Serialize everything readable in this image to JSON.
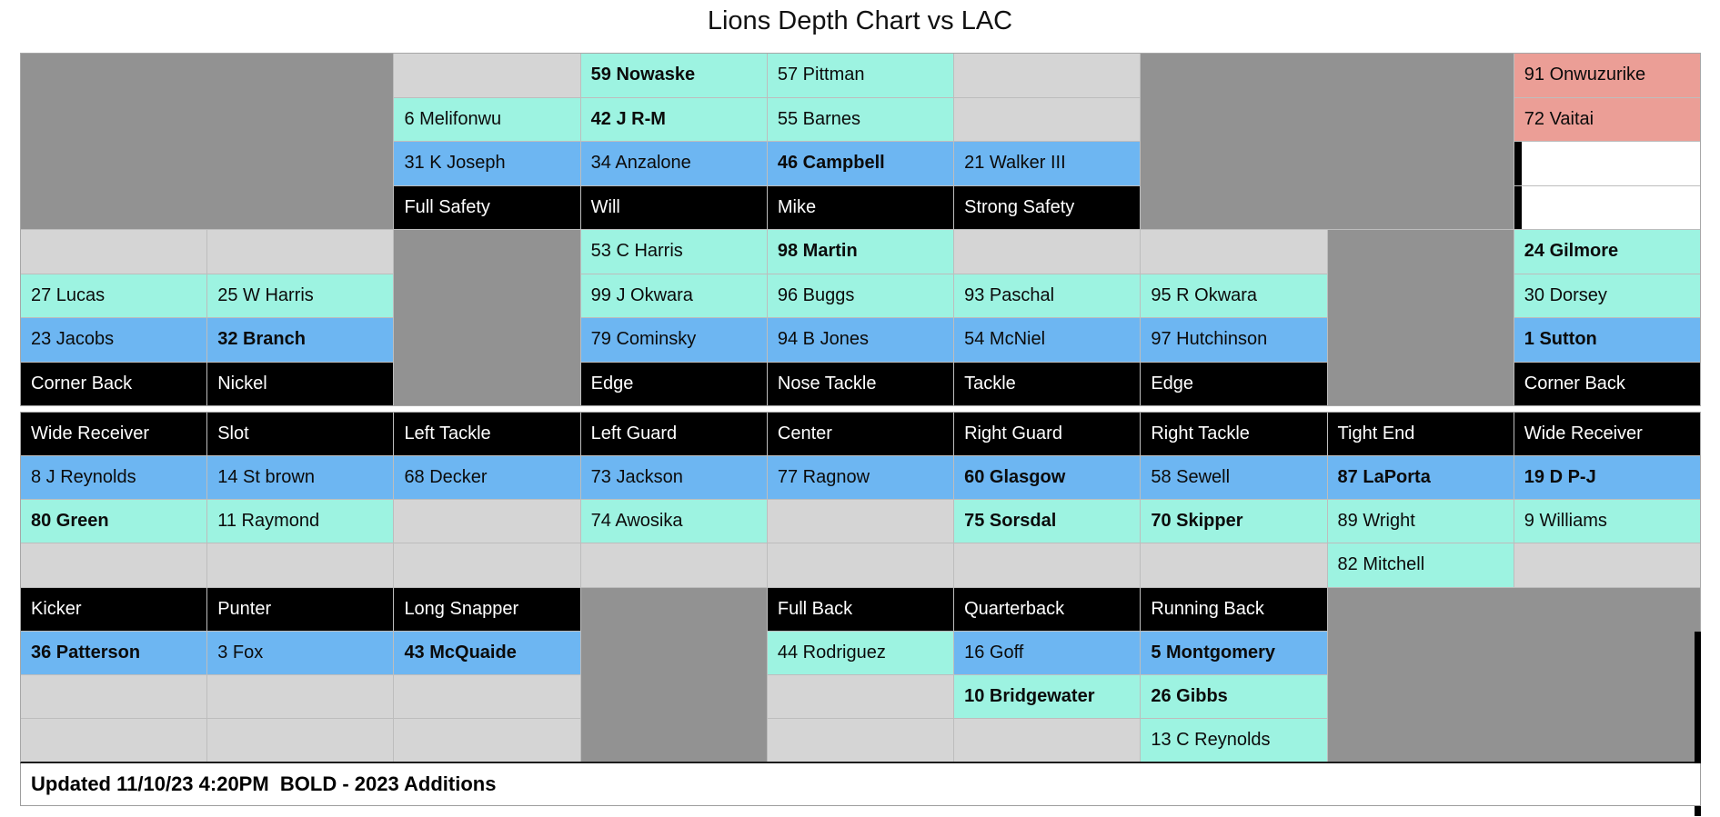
{
  "title": "Lions Depth Chart vs LAC",
  "footer": "Updated 11/10/23 4:20PM  BOLD - 2023 Additions",
  "colors": {
    "teal": "#9df3e1",
    "blue": "#6db6f2",
    "black": "#000000",
    "salmon": "#eb9e96",
    "dark": "#929292",
    "light": "#d5d5d5",
    "whitebar": "#ffffff",
    "grid_line": "#bdbdbd"
  },
  "grid": {
    "columns": 9,
    "sections": [
      {
        "name": "defense",
        "rows": 8,
        "cells": [
          {
            "r": 1,
            "c": 1,
            "rs": 4,
            "cs": 2,
            "bg": "dark"
          },
          {
            "r": 1,
            "c": 7,
            "rs": 4,
            "cs": 2,
            "bg": "dark"
          },
          {
            "r": 1,
            "c": 3,
            "bg": "light"
          },
          {
            "r": 1,
            "c": 4,
            "bg": "teal",
            "t": "59 Nowaske",
            "b": 1
          },
          {
            "r": 1,
            "c": 5,
            "bg": "teal",
            "t": "57 Pittman"
          },
          {
            "r": 1,
            "c": 6,
            "bg": "light"
          },
          {
            "r": 1,
            "c": 9,
            "bg": "salmon",
            "t": "91 Onwuzurike"
          },
          {
            "r": 2,
            "c": 3,
            "bg": "teal",
            "t": "6 Melifonwu"
          },
          {
            "r": 2,
            "c": 4,
            "bg": "teal",
            "t": "42 J R-M",
            "b": 1
          },
          {
            "r": 2,
            "c": 5,
            "bg": "teal",
            "t": "55 Barnes"
          },
          {
            "r": 2,
            "c": 6,
            "bg": "light"
          },
          {
            "r": 2,
            "c": 9,
            "bg": "salmon",
            "t": "72 Vaitai"
          },
          {
            "r": 3,
            "c": 3,
            "bg": "blue",
            "t": "31 K Joseph"
          },
          {
            "r": 3,
            "c": 4,
            "bg": "blue",
            "t": "34 Anzalone"
          },
          {
            "r": 3,
            "c": 5,
            "bg": "blue",
            "t": "46 Campbell",
            "b": 1
          },
          {
            "r": 3,
            "c": 6,
            "bg": "blue",
            "t": "21 Walker III"
          },
          {
            "r": 3,
            "c": 9,
            "bg": "whitebar"
          },
          {
            "r": 4,
            "c": 3,
            "bg": "black",
            "t": "Full Safety"
          },
          {
            "r": 4,
            "c": 4,
            "bg": "black",
            "t": "Will"
          },
          {
            "r": 4,
            "c": 5,
            "bg": "black",
            "t": "Mike"
          },
          {
            "r": 4,
            "c": 6,
            "bg": "black",
            "t": "Strong Safety"
          },
          {
            "r": 4,
            "c": 9,
            "bg": "whitebar"
          },
          {
            "r": 5,
            "c": 3,
            "rs": 4,
            "bg": "dark"
          },
          {
            "r": 5,
            "c": 8,
            "rs": 4,
            "bg": "dark"
          },
          {
            "r": 5,
            "c": 1,
            "bg": "light"
          },
          {
            "r": 5,
            "c": 2,
            "bg": "light"
          },
          {
            "r": 5,
            "c": 4,
            "bg": "teal",
            "t": "53 C Harris"
          },
          {
            "r": 5,
            "c": 5,
            "bg": "teal",
            "t": "98 Martin",
            "b": 1
          },
          {
            "r": 5,
            "c": 6,
            "bg": "light"
          },
          {
            "r": 5,
            "c": 7,
            "bg": "light"
          },
          {
            "r": 5,
            "c": 9,
            "bg": "teal",
            "t": "24 Gilmore",
            "b": 1
          },
          {
            "r": 6,
            "c": 1,
            "bg": "teal",
            "t": "27 Lucas"
          },
          {
            "r": 6,
            "c": 2,
            "bg": "teal",
            "t": "25 W Harris"
          },
          {
            "r": 6,
            "c": 4,
            "bg": "teal",
            "t": "99 J Okwara"
          },
          {
            "r": 6,
            "c": 5,
            "bg": "teal",
            "t": "96 Buggs"
          },
          {
            "r": 6,
            "c": 6,
            "bg": "teal",
            "t": "93 Paschal"
          },
          {
            "r": 6,
            "c": 7,
            "bg": "teal",
            "t": "95 R Okwara"
          },
          {
            "r": 6,
            "c": 9,
            "bg": "teal",
            "t": "30 Dorsey"
          },
          {
            "r": 7,
            "c": 1,
            "bg": "blue",
            "t": "23 Jacobs"
          },
          {
            "r": 7,
            "c": 2,
            "bg": "blue",
            "t": "32 Branch",
            "b": 1
          },
          {
            "r": 7,
            "c": 4,
            "bg": "blue",
            "t": "79 Cominsky"
          },
          {
            "r": 7,
            "c": 5,
            "bg": "blue",
            "t": "94 B Jones"
          },
          {
            "r": 7,
            "c": 6,
            "bg": "blue",
            "t": "54 McNiel"
          },
          {
            "r": 7,
            "c": 7,
            "bg": "blue",
            "t": "97 Hutchinson"
          },
          {
            "r": 7,
            "c": 9,
            "bg": "blue",
            "t": "1 Sutton",
            "b": 1
          },
          {
            "r": 8,
            "c": 1,
            "bg": "black",
            "t": "Corner Back"
          },
          {
            "r": 8,
            "c": 2,
            "bg": "black",
            "t": "Nickel"
          },
          {
            "r": 8,
            "c": 4,
            "bg": "black",
            "t": "Edge"
          },
          {
            "r": 8,
            "c": 5,
            "bg": "black",
            "t": "Nose Tackle"
          },
          {
            "r": 8,
            "c": 6,
            "bg": "black",
            "t": "Tackle"
          },
          {
            "r": 8,
            "c": 7,
            "bg": "black",
            "t": "Edge"
          },
          {
            "r": 8,
            "c": 9,
            "bg": "black",
            "t": "Corner Back"
          }
        ]
      },
      {
        "name": "offense",
        "rows": 8,
        "cells": [
          {
            "r": 1,
            "c": 1,
            "bg": "black",
            "t": "Wide Receiver"
          },
          {
            "r": 1,
            "c": 2,
            "bg": "black",
            "t": "Slot"
          },
          {
            "r": 1,
            "c": 3,
            "bg": "black",
            "t": "Left Tackle"
          },
          {
            "r": 1,
            "c": 4,
            "bg": "black",
            "t": "Left Guard"
          },
          {
            "r": 1,
            "c": 5,
            "bg": "black",
            "t": "Center"
          },
          {
            "r": 1,
            "c": 6,
            "bg": "black",
            "t": "Right Guard"
          },
          {
            "r": 1,
            "c": 7,
            "bg": "black",
            "t": "Right Tackle"
          },
          {
            "r": 1,
            "c": 8,
            "bg": "black",
            "t": "Tight End"
          },
          {
            "r": 1,
            "c": 9,
            "bg": "black",
            "t": "Wide Receiver"
          },
          {
            "r": 2,
            "c": 1,
            "bg": "blue",
            "t": "8 J Reynolds"
          },
          {
            "r": 2,
            "c": 2,
            "bg": "blue",
            "t": "14 St brown"
          },
          {
            "r": 2,
            "c": 3,
            "bg": "blue",
            "t": "68 Decker"
          },
          {
            "r": 2,
            "c": 4,
            "bg": "blue",
            "t": "73 Jackson"
          },
          {
            "r": 2,
            "c": 5,
            "bg": "blue",
            "t": "77 Ragnow"
          },
          {
            "r": 2,
            "c": 6,
            "bg": "blue",
            "t": "60 Glasgow",
            "b": 1
          },
          {
            "r": 2,
            "c": 7,
            "bg": "blue",
            "t": "58 Sewell"
          },
          {
            "r": 2,
            "c": 8,
            "bg": "blue",
            "t": "87 LaPorta",
            "b": 1
          },
          {
            "r": 2,
            "c": 9,
            "bg": "blue",
            "t": "19 D P-J",
            "b": 1
          },
          {
            "r": 3,
            "c": 1,
            "bg": "teal",
            "t": "80 Green",
            "b": 1
          },
          {
            "r": 3,
            "c": 2,
            "bg": "teal",
            "t": "11 Raymond"
          },
          {
            "r": 3,
            "c": 3,
            "bg": "light"
          },
          {
            "r": 3,
            "c": 4,
            "bg": "teal",
            "t": "74 Awosika"
          },
          {
            "r": 3,
            "c": 5,
            "bg": "light"
          },
          {
            "r": 3,
            "c": 6,
            "bg": "teal",
            "t": "75 Sorsdal",
            "b": 1
          },
          {
            "r": 3,
            "c": 7,
            "bg": "teal",
            "t": "70 Skipper",
            "b": 1
          },
          {
            "r": 3,
            "c": 8,
            "bg": "teal",
            "t": "89 Wright"
          },
          {
            "r": 3,
            "c": 9,
            "bg": "teal",
            "t": "9 Williams"
          },
          {
            "r": 4,
            "c": 1,
            "bg": "light"
          },
          {
            "r": 4,
            "c": 2,
            "bg": "light"
          },
          {
            "r": 4,
            "c": 3,
            "bg": "light"
          },
          {
            "r": 4,
            "c": 4,
            "bg": "light"
          },
          {
            "r": 4,
            "c": 5,
            "bg": "light"
          },
          {
            "r": 4,
            "c": 6,
            "bg": "light"
          },
          {
            "r": 4,
            "c": 7,
            "bg": "light"
          },
          {
            "r": 4,
            "c": 8,
            "bg": "teal",
            "t": "82 Mitchell"
          },
          {
            "r": 4,
            "c": 9,
            "bg": "light"
          },
          {
            "r": 5,
            "c": 4,
            "rs": 4,
            "bg": "dark"
          },
          {
            "r": 5,
            "c": 8,
            "rs": 4,
            "cs": 2,
            "bg": "dark"
          },
          {
            "r": 5,
            "c": 1,
            "bg": "black",
            "t": "Kicker"
          },
          {
            "r": 5,
            "c": 2,
            "bg": "black",
            "t": "Punter"
          },
          {
            "r": 5,
            "c": 3,
            "bg": "black",
            "t": "Long Snapper"
          },
          {
            "r": 5,
            "c": 5,
            "bg": "black",
            "t": "Full Back"
          },
          {
            "r": 5,
            "c": 6,
            "bg": "black",
            "t": "Quarterback"
          },
          {
            "r": 5,
            "c": 7,
            "bg": "black",
            "t": "Running Back"
          },
          {
            "r": 6,
            "c": 1,
            "bg": "blue",
            "t": "36 Patterson",
            "b": 1
          },
          {
            "r": 6,
            "c": 2,
            "bg": "blue",
            "t": "3 Fox"
          },
          {
            "r": 6,
            "c": 3,
            "bg": "blue",
            "t": "43 McQuaide",
            "b": 1
          },
          {
            "r": 6,
            "c": 5,
            "bg": "teal",
            "t": "44 Rodriguez"
          },
          {
            "r": 6,
            "c": 6,
            "bg": "blue",
            "t": "16 Goff"
          },
          {
            "r": 6,
            "c": 7,
            "bg": "blue",
            "t": "5 Montgomery",
            "b": 1
          },
          {
            "r": 7,
            "c": 1,
            "bg": "light"
          },
          {
            "r": 7,
            "c": 2,
            "bg": "light"
          },
          {
            "r": 7,
            "c": 3,
            "bg": "light"
          },
          {
            "r": 7,
            "c": 5,
            "bg": "light"
          },
          {
            "r": 7,
            "c": 6,
            "bg": "teal",
            "t": "10 Bridgewater",
            "b": 1
          },
          {
            "r": 7,
            "c": 7,
            "bg": "teal",
            "t": "26 Gibbs",
            "b": 1
          },
          {
            "r": 8,
            "c": 1,
            "bg": "light"
          },
          {
            "r": 8,
            "c": 2,
            "bg": "light"
          },
          {
            "r": 8,
            "c": 3,
            "bg": "light"
          },
          {
            "r": 8,
            "c": 5,
            "bg": "light"
          },
          {
            "r": 8,
            "c": 6,
            "bg": "light"
          },
          {
            "r": 8,
            "c": 7,
            "bg": "teal",
            "t": "13 C Reynolds"
          }
        ]
      }
    ]
  }
}
